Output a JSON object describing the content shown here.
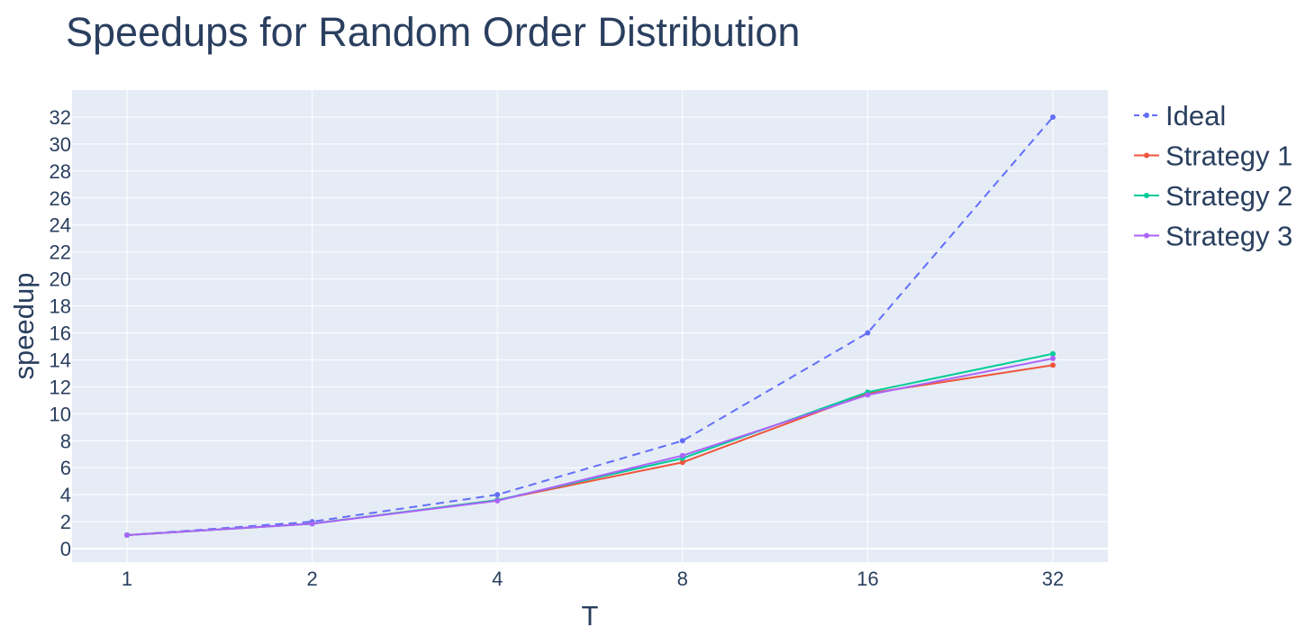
{
  "chart_data": {
    "type": "line",
    "title": "Speedups for Random Order Distribution",
    "xlabel": "T",
    "ylabel": "speedup",
    "x": [
      1,
      2,
      4,
      8,
      16,
      32
    ],
    "x_scale": "log2",
    "xticks": [
      "1",
      "2",
      "4",
      "8",
      "16",
      "32"
    ],
    "ylim": [
      -1,
      34
    ],
    "yticks": [
      "0",
      "2",
      "4",
      "6",
      "8",
      "10",
      "12",
      "14",
      "16",
      "18",
      "20",
      "22",
      "24",
      "26",
      "28",
      "30",
      "32"
    ],
    "grid": true,
    "legend_position": "right",
    "background": "#e5ecf6",
    "series": [
      {
        "name": "Ideal",
        "values": [
          1,
          2,
          4,
          8,
          16,
          32
        ],
        "color": "#636efa",
        "dash": "dash"
      },
      {
        "name": "Strategy 1",
        "values": [
          1,
          1.85,
          3.6,
          6.4,
          11.5,
          13.6
        ],
        "color": "#ef553b",
        "dash": "solid"
      },
      {
        "name": "Strategy 2",
        "values": [
          1,
          1.85,
          3.6,
          6.7,
          11.6,
          14.45
        ],
        "color": "#00cc96",
        "dash": "solid"
      },
      {
        "name": "Strategy 3",
        "values": [
          1,
          1.85,
          3.55,
          6.9,
          11.4,
          14.1
        ],
        "color": "#ab63fa",
        "dash": "solid"
      }
    ]
  }
}
